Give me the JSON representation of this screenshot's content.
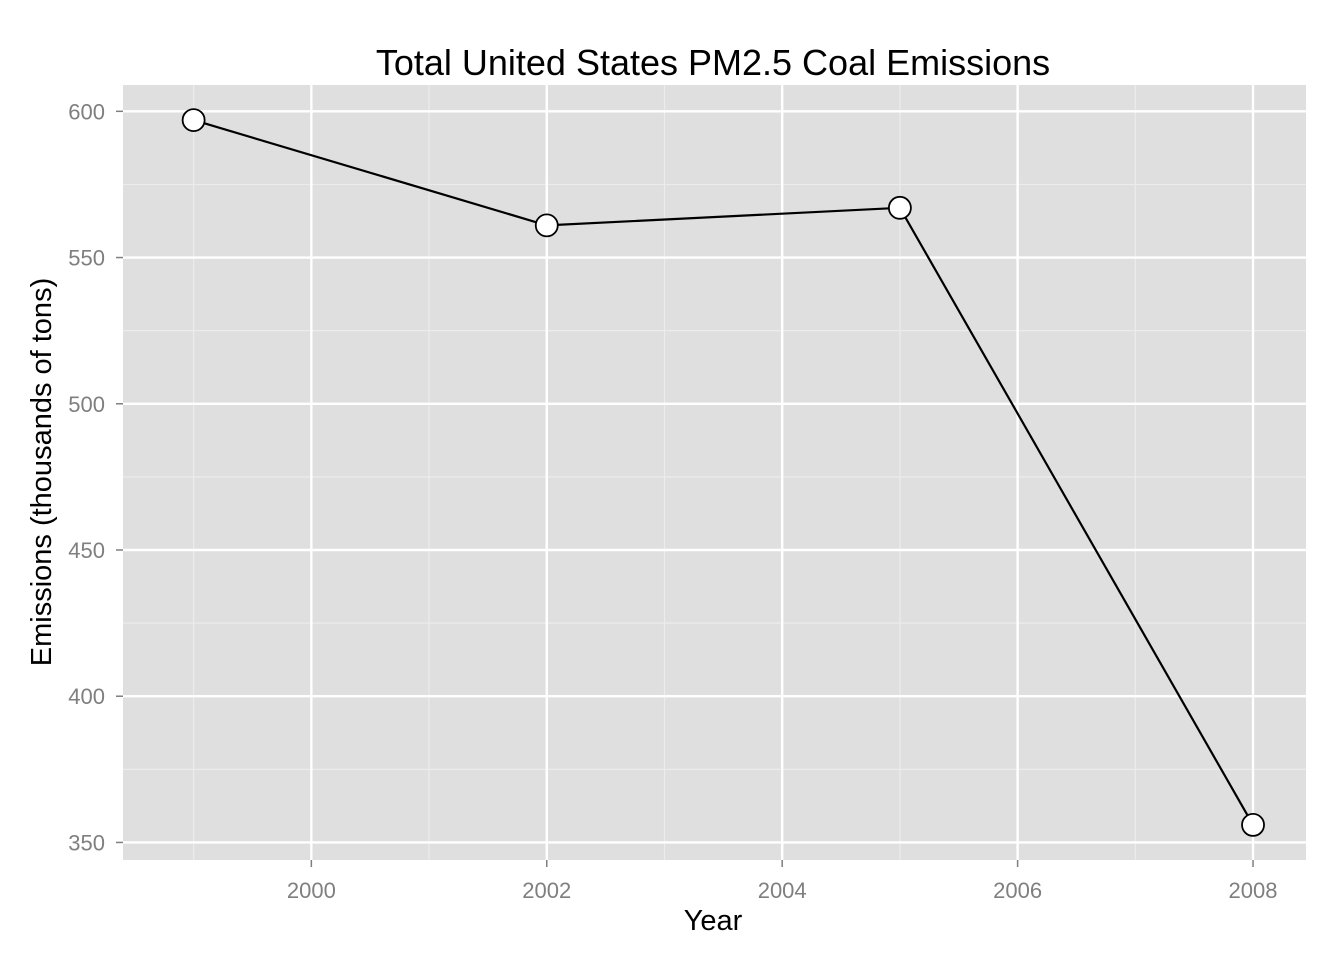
{
  "chart_data": {
    "type": "line",
    "title": "Total United States PM2.5 Coal Emissions",
    "xlabel": "Year",
    "ylabel": "Emissions (thousands of tons)",
    "x": [
      1999,
      2002,
      2005,
      2008
    ],
    "values": [
      597,
      561,
      567,
      356
    ],
    "xlim": [
      1998.4,
      2008.45
    ],
    "ylim": [
      344,
      609
    ],
    "xticks": [
      2000,
      2002,
      2004,
      2006,
      2008
    ],
    "yticks": [
      350,
      400,
      450,
      500,
      550,
      600
    ],
    "xtick_labels": [
      "2000",
      "2002",
      "2004",
      "2006",
      "2008"
    ],
    "ytick_labels": [
      "350",
      "400",
      "450",
      "500",
      "550",
      "600"
    ],
    "grid": true,
    "legend": "none",
    "colors": {
      "panel": "#dfdfdf",
      "grid_major": "#ffffff",
      "grid_minor": "#ececec",
      "line": "#000000",
      "marker_fill": "#ffffff",
      "tick_text": "#7f7f7f"
    }
  }
}
